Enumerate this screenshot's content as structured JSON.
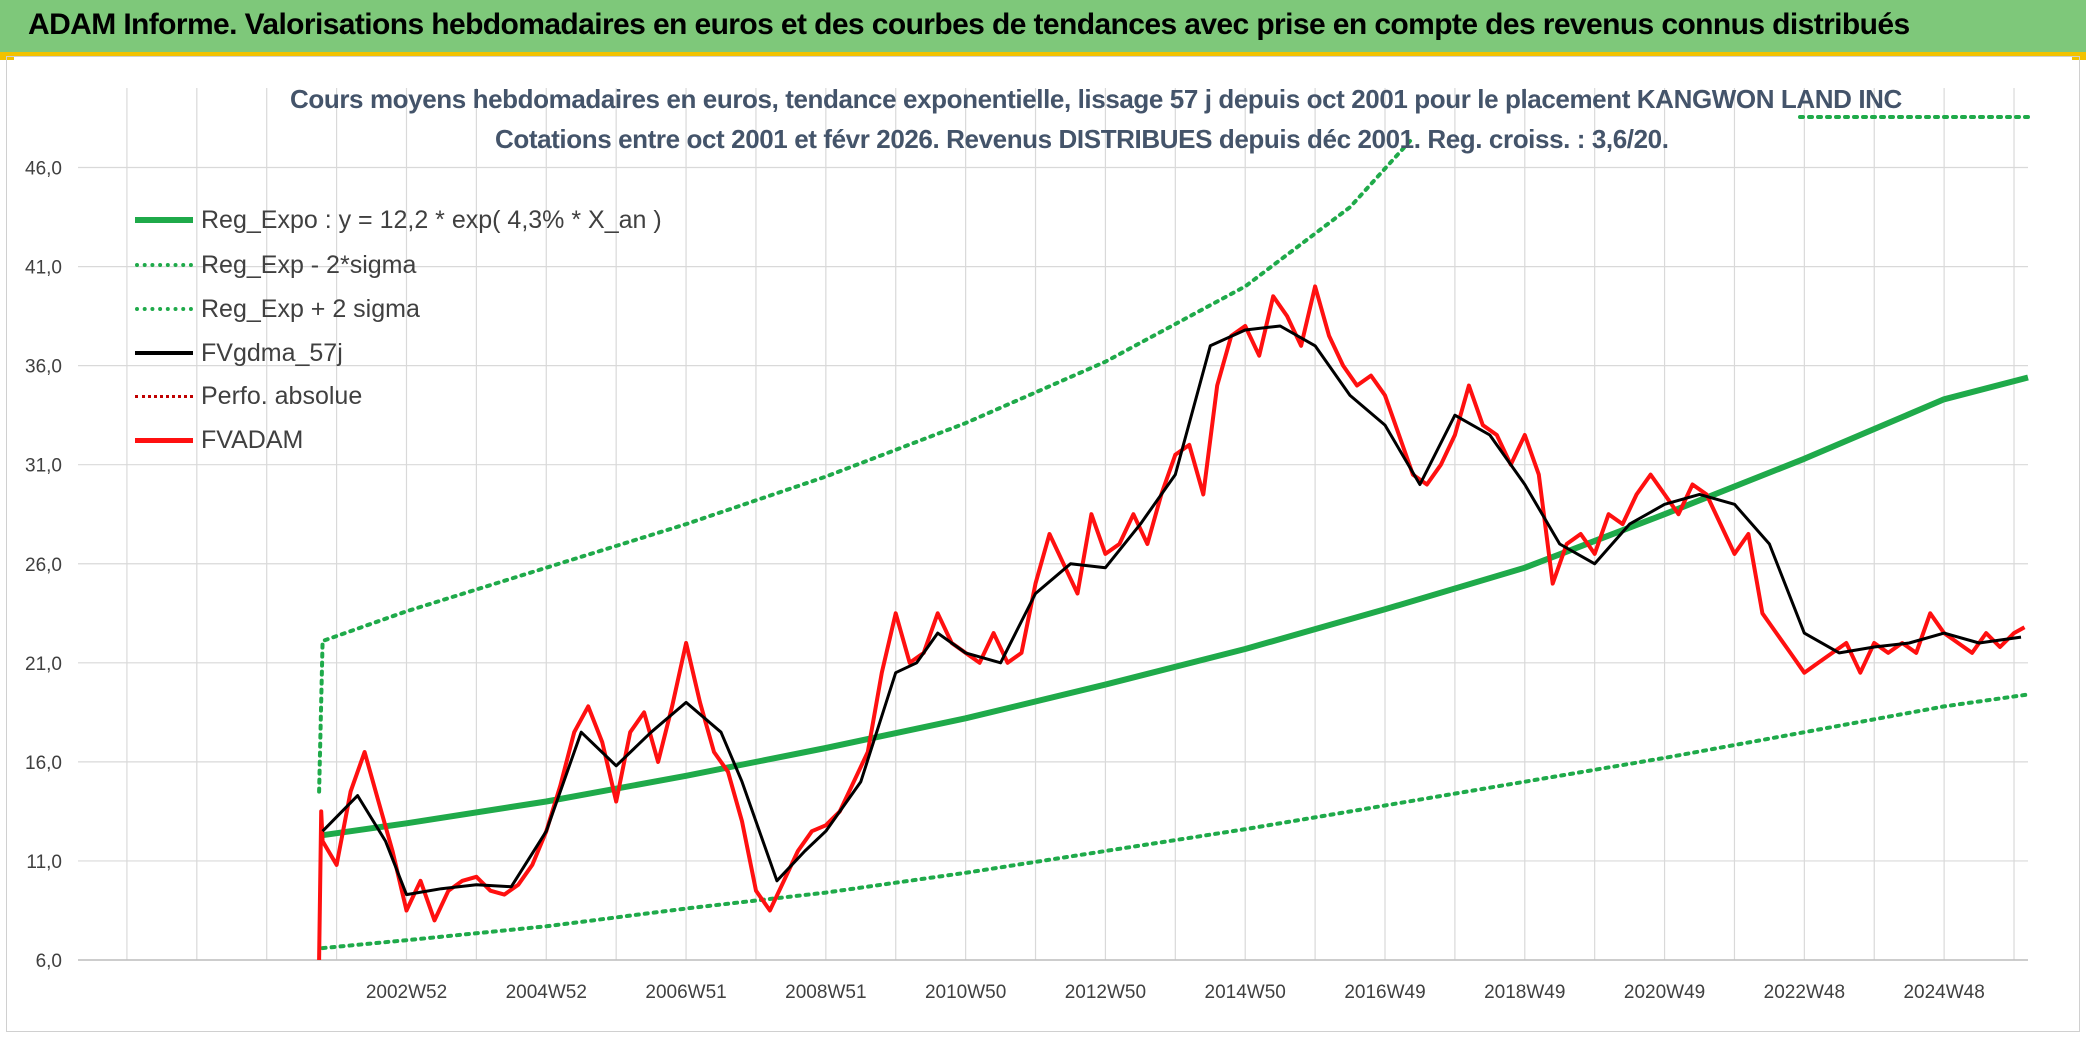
{
  "banner": {
    "title": "ADAM Informe. Valorisations hebdomadaires en euros et des courbes de tendances avec prise en compte des revenus connus distribués"
  },
  "colors": {
    "banner_bg": "#7ec87a",
    "accent": "#f2c200",
    "reg_expo": "#1faa4a",
    "sigma": "#1faa4a",
    "fvgdma": "#000000",
    "perfo": "#c00000",
    "fvadam": "#ff1010",
    "grid": "#d9d9d9"
  },
  "chart_data": {
    "type": "line",
    "title": "Cours moyens hebdomadaires en euros, tendance exponentielle, lissage 57 j depuis oct 2001 pour le placement KANGWON LAND INC",
    "subtitle": "Cotations entre oct 2001 et févr 2026. Revenus DISTRIBUES depuis déc 2001. Reg. croiss. : 3,6/20.",
    "xlabel": "",
    "ylabel": "",
    "xlim": [
      1998.3,
      2026.2
    ],
    "ylim": [
      6.0,
      48.5
    ],
    "yticks": [
      6.0,
      11.0,
      16.0,
      21.0,
      26.0,
      31.0,
      36.0,
      41.0,
      46.0
    ],
    "ytick_labels": [
      "6,0",
      "11,0",
      "16,0",
      "21,0",
      "26,0",
      "31,0",
      "36,0",
      "41,0",
      "46,0"
    ],
    "xtick_positions": [
      2003.0,
      2005.0,
      2007.0,
      2009.0,
      2011.0,
      2013.0,
      2015.0,
      2017.0,
      2019.0,
      2021.0,
      2023.0,
      2025.0
    ],
    "xtick_labels": [
      "2002W52",
      "2004W52",
      "2006W51",
      "2008W51",
      "2010W50",
      "2012W50",
      "2014W50",
      "2016W49",
      "2018W49",
      "2020W49",
      "2022W48",
      "2024W48"
    ],
    "grid": true,
    "legend_position": "top-left",
    "series": [
      {
        "name": "Reg_Expo : y = 12,2 * exp( 4,3% *  X_an )",
        "style": "solid-thick",
        "x": [
          2001.8,
          2003,
          2005,
          2007,
          2009,
          2011,
          2013,
          2015,
          2017,
          2019,
          2021,
          2023,
          2025,
          2026.2
        ],
        "values": [
          12.3,
          12.9,
          14.0,
          15.3,
          16.7,
          18.2,
          19.9,
          21.7,
          23.7,
          25.8,
          28.5,
          31.3,
          34.3,
          35.4
        ]
      },
      {
        "name": "Reg_Exp - 2*sigma",
        "style": "dotted",
        "x": [
          2001.8,
          2003,
          2005,
          2007,
          2009,
          2011,
          2013,
          2015,
          2017,
          2019,
          2021,
          2023,
          2025,
          2026.2
        ],
        "values": [
          6.6,
          7.0,
          7.7,
          8.6,
          9.4,
          10.4,
          11.5,
          12.6,
          13.8,
          15.0,
          16.2,
          17.5,
          18.8,
          19.4
        ]
      },
      {
        "name": "Reg_Exp + 2 sigma",
        "style": "dotted",
        "x": [
          2001.75,
          2001.8,
          2003,
          2005,
          2007,
          2009,
          2011,
          2013,
          2015,
          2016.5,
          2017.4
        ],
        "values": [
          14.5,
          22.1,
          23.6,
          25.8,
          28.0,
          30.4,
          33.1,
          36.2,
          40.0,
          44.0,
          47.5
        ]
      },
      {
        "name": "FVgdma_57j",
        "style": "solid",
        "x": [
          2001.8,
          2002.3,
          2002.7,
          2003.0,
          2003.5,
          2004.0,
          2004.5,
          2005.0,
          2005.5,
          2006.0,
          2006.5,
          2007.0,
          2007.5,
          2007.8,
          2008.3,
          2008.7,
          2009.0,
          2009.5,
          2010.0,
          2010.3,
          2010.6,
          2011.0,
          2011.5,
          2012.0,
          2012.5,
          2013.0,
          2013.5,
          2014.0,
          2014.5,
          2015.0,
          2015.5,
          2016.0,
          2016.5,
          2017.0,
          2017.5,
          2018.0,
          2018.5,
          2019.0,
          2019.5,
          2020.0,
          2020.5,
          2021.0,
          2021.5,
          2022.0,
          2022.5,
          2023.0,
          2023.5,
          2024.0,
          2024.5,
          2025.0,
          2025.5,
          2026.1
        ],
        "values": [
          12.5,
          14.3,
          12.0,
          9.3,
          9.6,
          9.8,
          9.7,
          12.5,
          17.5,
          15.8,
          17.5,
          19.0,
          17.5,
          15.0,
          10.0,
          11.5,
          12.5,
          15.0,
          20.5,
          21.0,
          22.5,
          21.5,
          21.0,
          24.5,
          26.0,
          25.8,
          28.0,
          30.5,
          37.0,
          37.8,
          38.0,
          37.0,
          34.5,
          33.0,
          30.0,
          33.5,
          32.5,
          30.0,
          27.0,
          26.0,
          28.0,
          29.0,
          29.5,
          29.0,
          27.0,
          22.5,
          21.5,
          21.8,
          22.0,
          22.5,
          22.0,
          22.3
        ]
      },
      {
        "name": "Perfo. absolue",
        "style": "dotted",
        "x": [],
        "values": []
      },
      {
        "name": "FVADAM",
        "style": "solid-thick",
        "x": [
          2001.75,
          2001.78,
          2001.8,
          2002.0,
          2002.2,
          2002.4,
          2002.6,
          2002.8,
          2003.0,
          2003.2,
          2003.4,
          2003.6,
          2003.8,
          2004.0,
          2004.2,
          2004.4,
          2004.6,
          2004.8,
          2005.0,
          2005.2,
          2005.4,
          2005.6,
          2005.8,
          2006.0,
          2006.2,
          2006.4,
          2006.6,
          2006.8,
          2007.0,
          2007.2,
          2007.4,
          2007.6,
          2007.8,
          2008.0,
          2008.2,
          2008.4,
          2008.6,
          2008.8,
          2009.0,
          2009.2,
          2009.4,
          2009.6,
          2009.8,
          2010.0,
          2010.2,
          2010.4,
          2010.6,
          2010.8,
          2011.0,
          2011.2,
          2011.4,
          2011.6,
          2011.8,
          2012.0,
          2012.2,
          2012.4,
          2012.6,
          2012.8,
          2013.0,
          2013.2,
          2013.4,
          2013.6,
          2013.8,
          2014.0,
          2014.2,
          2014.4,
          2014.6,
          2014.8,
          2015.0,
          2015.2,
          2015.4,
          2015.6,
          2015.8,
          2016.0,
          2016.2,
          2016.4,
          2016.6,
          2016.8,
          2017.0,
          2017.2,
          2017.4,
          2017.6,
          2017.8,
          2018.0,
          2018.2,
          2018.4,
          2018.6,
          2018.8,
          2019.0,
          2019.2,
          2019.4,
          2019.6,
          2019.8,
          2020.0,
          2020.2,
          2020.4,
          2020.6,
          2020.8,
          2021.0,
          2021.2,
          2021.4,
          2021.6,
          2021.8,
          2022.0,
          2022.2,
          2022.4,
          2022.6,
          2022.8,
          2023.0,
          2023.2,
          2023.4,
          2023.6,
          2023.8,
          2024.0,
          2024.2,
          2024.4,
          2024.6,
          2024.8,
          2025.0,
          2025.2,
          2025.4,
          2025.6,
          2025.8,
          2026.0,
          2026.15
        ],
        "values": [
          6.0,
          13.5,
          12.0,
          10.8,
          14.5,
          16.5,
          14.0,
          11.5,
          8.5,
          10.0,
          8.0,
          9.5,
          10.0,
          10.2,
          9.5,
          9.3,
          9.8,
          10.8,
          12.5,
          14.8,
          17.5,
          18.8,
          17.0,
          14.0,
          17.5,
          18.5,
          16.0,
          18.8,
          22.0,
          19.0,
          16.5,
          15.5,
          13.0,
          9.5,
          8.5,
          10.0,
          11.5,
          12.5,
          12.8,
          13.5,
          15.0,
          16.5,
          20.5,
          23.5,
          21.0,
          21.5,
          23.5,
          22.0,
          21.5,
          21.0,
          22.5,
          21.0,
          21.5,
          25.0,
          27.5,
          26.0,
          24.5,
          28.5,
          26.5,
          27.0,
          28.5,
          27.0,
          29.5,
          31.5,
          32.0,
          29.5,
          35.0,
          37.5,
          38.0,
          36.5,
          39.5,
          38.5,
          37.0,
          40.0,
          37.5,
          36.0,
          35.0,
          35.5,
          34.5,
          32.5,
          30.5,
          30.0,
          31.0,
          32.5,
          35.0,
          33.0,
          32.5,
          31.0,
          32.5,
          30.5,
          25.0,
          27.0,
          27.5,
          26.5,
          28.5,
          28.0,
          29.5,
          30.5,
          29.5,
          28.5,
          30.0,
          29.5,
          28.0,
          26.5,
          27.5,
          23.5,
          22.5,
          21.5,
          20.5,
          21.0,
          21.5,
          22.0,
          20.5,
          22.0,
          21.5,
          22.0,
          21.5,
          23.5,
          22.5,
          22.0,
          21.5,
          22.5,
          21.8,
          22.5,
          22.8
        ]
      }
    ]
  },
  "legend": {
    "items": [
      {
        "label": "Reg_Expo : y = 12,2 * exp( 4,3% *  X_an )"
      },
      {
        "label": "Reg_Exp - 2*sigma"
      },
      {
        "label": "Reg_Exp + 2 sigma"
      },
      {
        "label": "FVgdma_57j"
      },
      {
        "label": "Perfo. absolue"
      },
      {
        "label": "FVADAM"
      }
    ]
  }
}
